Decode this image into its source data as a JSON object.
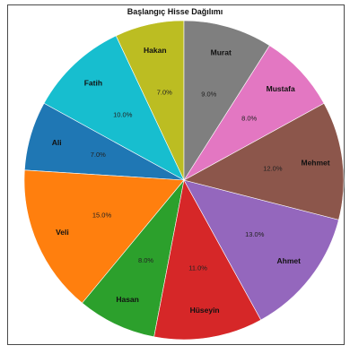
{
  "chart_data": {
    "type": "pie",
    "title": "Başlangıç Hisse Dağılımı",
    "start_angle_deg": 90,
    "direction": "counterclockwise",
    "slices": [
      {
        "label": "Hakan",
        "value": 7.0,
        "pct_label": "7.0%",
        "color": "#bcbd22"
      },
      {
        "label": "Fatih",
        "value": 10.0,
        "pct_label": "10.0%",
        "color": "#17becf"
      },
      {
        "label": "Ali",
        "value": 7.0,
        "pct_label": "7.0%",
        "color": "#1f77b4"
      },
      {
        "label": "Veli",
        "value": 15.0,
        "pct_label": "15.0%",
        "color": "#ff7f0e"
      },
      {
        "label": "Hasan",
        "value": 8.0,
        "pct_label": "8.0%",
        "color": "#2ca02c"
      },
      {
        "label": "Hüseyin",
        "value": 11.0,
        "pct_label": "11.0%",
        "color": "#d62728"
      },
      {
        "label": "Ahmet",
        "value": 13.0,
        "pct_label": "13.0%",
        "color": "#9467bd"
      },
      {
        "label": "Mehmet",
        "value": 12.0,
        "pct_label": "12.0%",
        "color": "#8c564b"
      },
      {
        "label": "Mustafa",
        "value": 8.0,
        "pct_label": "8.0%",
        "color": "#e377c2"
      },
      {
        "label": "Murat",
        "value": 9.0,
        "pct_label": "9.0%",
        "color": "#7f7f7f"
      }
    ]
  }
}
